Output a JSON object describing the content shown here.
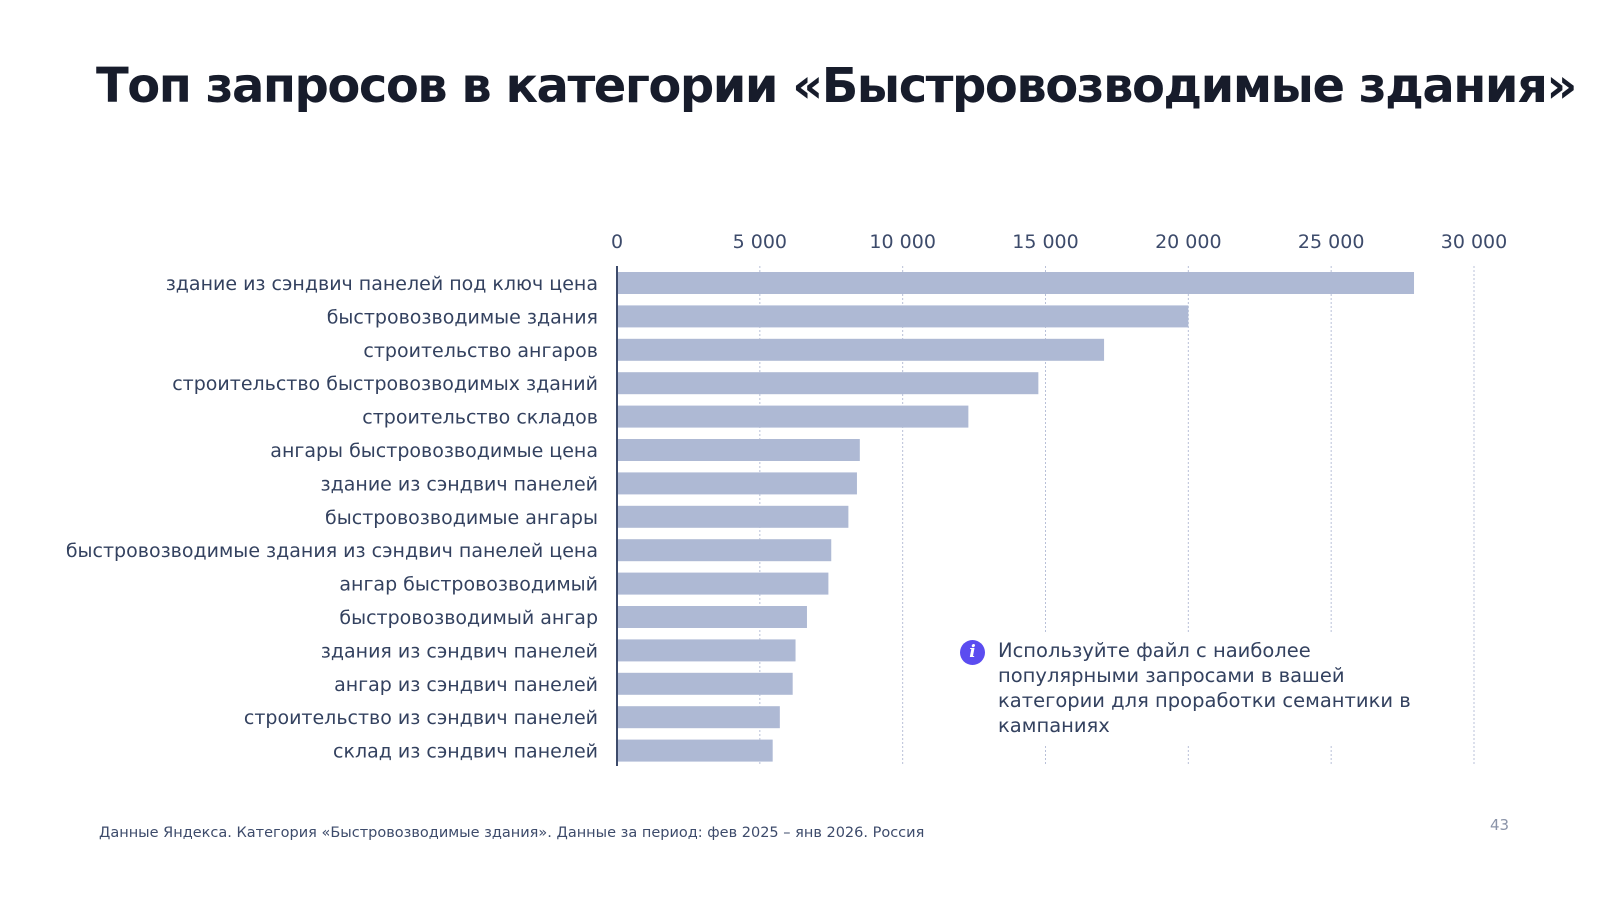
{
  "slide": {
    "title": "Топ запросов в категории «Быстровозводимые здания»",
    "note_icon": "info-icon",
    "note": "Используйте файл с наиболее популярными запросами в вашей категории для проработки семантики в кампаниях",
    "source": "Данные Яндекса. Категория «Быстровозводимые здания». Данные за период: фев 2025 – янв 2026. Россия",
    "page_number": "43"
  },
  "colors": {
    "bar": "#aeb9d4",
    "axis": "#3d4b6b",
    "grid": "#b8c0d8",
    "accent": "#5b4cf0"
  },
  "chart_data": {
    "type": "bar",
    "orientation": "horizontal",
    "title": "",
    "xlabel": "",
    "ylabel": "",
    "xlim": [
      0,
      30000
    ],
    "x_ticks": [
      0,
      5000,
      10000,
      15000,
      20000,
      25000,
      30000
    ],
    "x_tick_labels": [
      "0",
      "5 000",
      "10 000",
      "15 000",
      "20 000",
      "25 000",
      "30 000"
    ],
    "x_axis_position": "top",
    "grid": true,
    "categories": [
      "здание из сэндвич панелей под ключ цена",
      "быстровозводимые здания",
      "строительство ангаров",
      "строительство быстровозводимых зданий",
      "строительство складов",
      "ангары быстровозводимые цена",
      "здание из сэндвич панелей",
      "быстровозводимые ангары",
      "быстровозводимые здания из сэндвич панелей цена",
      "ангар быстровозводимый",
      "быстровозводимый ангар",
      "здания из сэндвич панелей",
      "ангар из сэндвич панелей",
      "строительство из сэндвич панелей",
      "склад из сэндвич панелей"
    ],
    "values": [
      27900,
      20000,
      17050,
      14750,
      12300,
      8500,
      8400,
      8100,
      7500,
      7400,
      6650,
      6250,
      6150,
      5700,
      5450
    ]
  }
}
